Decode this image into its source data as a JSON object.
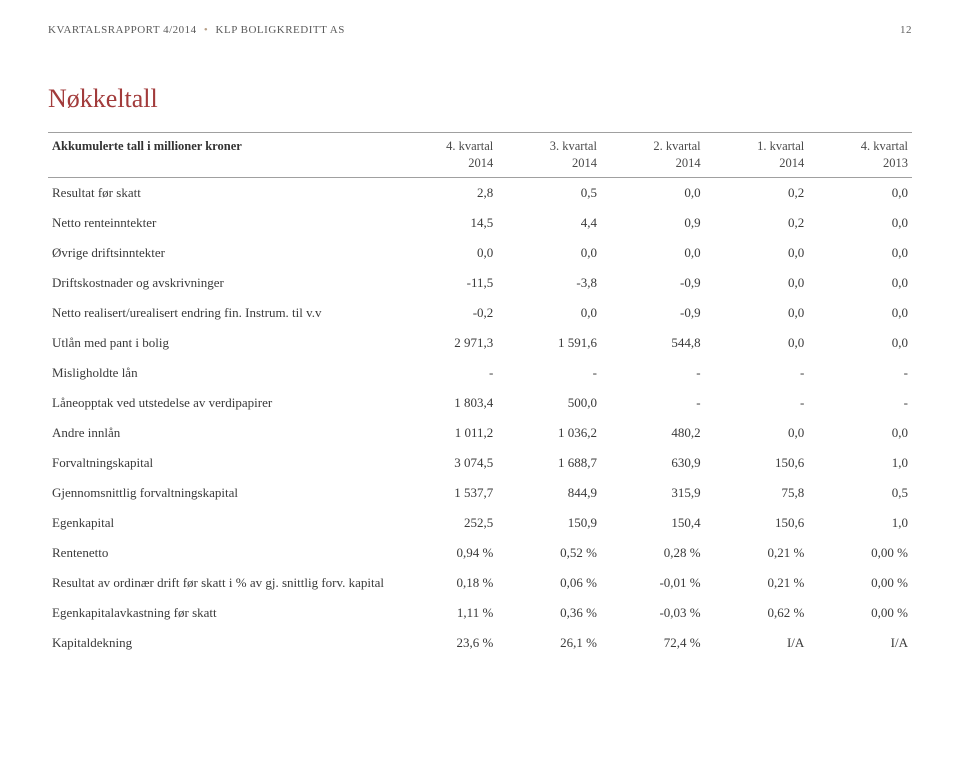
{
  "header": {
    "report": "KVARTALSRAPPORT 4/2014",
    "company": "KLP BOLIGKREDITT AS",
    "page_number": "12"
  },
  "title": "Nøkkeltall",
  "table": {
    "header_label": "Akkumulerte tall i millioner kroner",
    "columns": [
      {
        "line1": "4. kvartal",
        "line2": "2014"
      },
      {
        "line1": "3. kvartal",
        "line2": "2014"
      },
      {
        "line1": "2. kvartal",
        "line2": "2014"
      },
      {
        "line1": "1. kvartal",
        "line2": "2014"
      },
      {
        "line1": "4. kvartal",
        "line2": "2013"
      }
    ],
    "rows": [
      {
        "label": "Resultat før skatt",
        "v": [
          "2,8",
          "0,5",
          "0,0",
          "0,2",
          "0,0"
        ]
      },
      {
        "label": "Netto renteinntekter",
        "v": [
          "14,5",
          "4,4",
          "0,9",
          "0,2",
          "0,0"
        ]
      },
      {
        "label": "Øvrige driftsinntekter",
        "v": [
          "0,0",
          "0,0",
          "0,0",
          "0,0",
          "0,0"
        ]
      },
      {
        "label": "Driftskostnader og avskrivninger",
        "v": [
          "-11,5",
          "-3,8",
          "-0,9",
          "0,0",
          "0,0"
        ]
      },
      {
        "label": "Netto realisert/urealisert endring fin. Instrum. til v.v",
        "v": [
          "-0,2",
          "0,0",
          "-0,9",
          "0,0",
          "0,0"
        ]
      },
      {
        "label": "Utlån med pant i bolig",
        "v": [
          "2 971,3",
          "1 591,6",
          "544,8",
          "0,0",
          "0,0"
        ]
      },
      {
        "label": "Misligholdte lån",
        "v": [
          "-",
          "-",
          "-",
          "-",
          "-"
        ]
      },
      {
        "label": "Låneopptak ved utstedelse av verdipapirer",
        "v": [
          "1 803,4",
          "500,0",
          "-",
          "-",
          "-"
        ]
      },
      {
        "label": "Andre innlån",
        "v": [
          "1 011,2",
          "1 036,2",
          "480,2",
          "0,0",
          "0,0"
        ]
      },
      {
        "label": "Forvaltningskapital",
        "v": [
          "3 074,5",
          "1 688,7",
          "630,9",
          "150,6",
          "1,0"
        ]
      },
      {
        "label": "Gjennomsnittlig forvaltningskapital",
        "v": [
          "1 537,7",
          "844,9",
          "315,9",
          "75,8",
          "0,5"
        ]
      },
      {
        "label": "Egenkapital",
        "v": [
          "252,5",
          "150,9",
          "150,4",
          "150,6",
          "1,0"
        ]
      },
      {
        "label": "Rentenetto",
        "v": [
          "0,94 %",
          "0,52 %",
          "0,28 %",
          "0,21 %",
          "0,00 %"
        ]
      },
      {
        "label": "Resultat av ordinær drift før skatt i % av gj. snittlig forv. kapital",
        "v": [
          "0,18 %",
          "0,06 %",
          "-0,01 %",
          "0,21 %",
          "0,00 %"
        ]
      },
      {
        "label": "Egenkapitalavkastning før skatt",
        "v": [
          "1,11 %",
          "0,36 %",
          "-0,03 %",
          "0,62 %",
          "0,00 %"
        ]
      },
      {
        "label": "Kapitaldekning",
        "v": [
          "23,6 %",
          "26,1 %",
          "72,4 %",
          "I/A",
          "I/A"
        ]
      }
    ]
  },
  "styles": {
    "background": "#ffffff",
    "title_color": "#a23b3b",
    "rule_color": "#a0a0a0",
    "text_color": "#3a3a3a",
    "dot_color": "#b8a088"
  }
}
